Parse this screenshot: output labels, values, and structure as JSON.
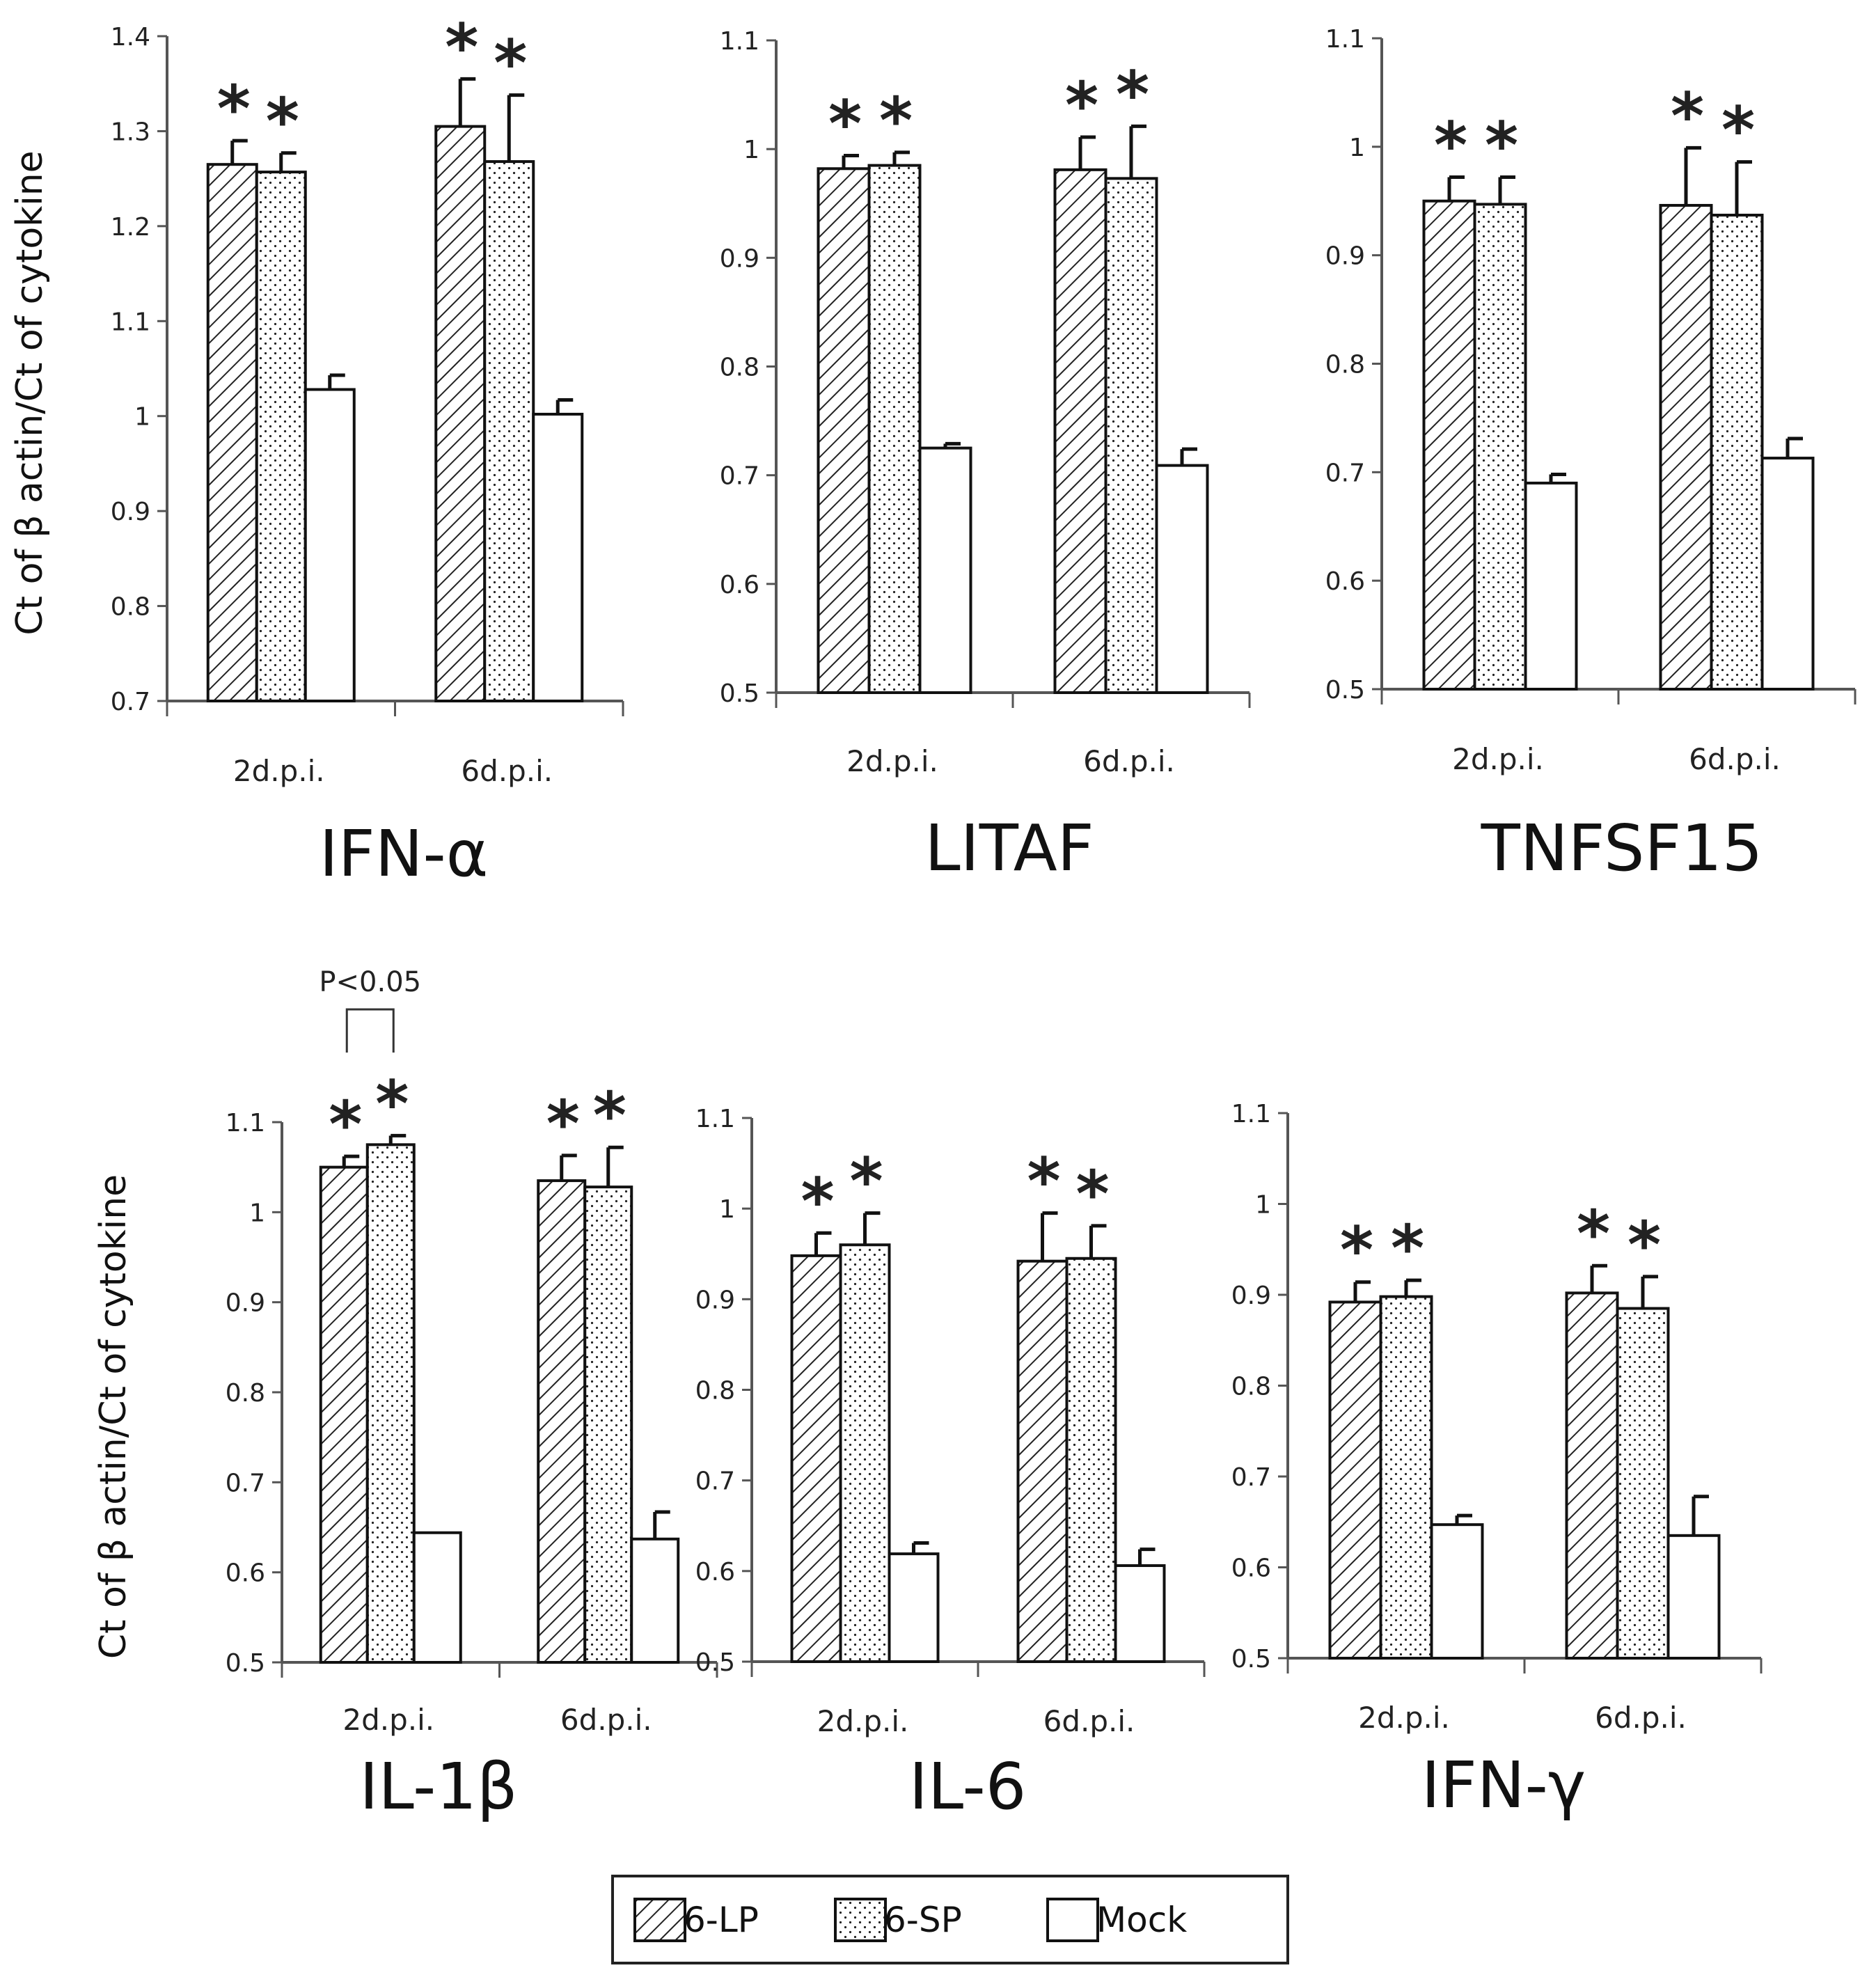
{
  "chart_data": {
    "type": "bar",
    "figure": "Cytokine expression (grouped bar charts with error bars)",
    "ylabel": "Ct of β actin/Ct of cytokine",
    "categories": [
      "2d.p.i.",
      "6d.p.i."
    ],
    "legend": {
      "placement": "bottom-center",
      "entries": [
        {
          "name": "6-LP",
          "pattern": "hatch"
        },
        {
          "name": "6-SP",
          "pattern": "dots"
        },
        {
          "name": "Mock",
          "pattern": "empty"
        }
      ]
    },
    "significance_marker": "*",
    "panels": [
      {
        "title": "IFN-α",
        "show_ylabel": true,
        "ylim": [
          0.7,
          1.4
        ],
        "yticks": [
          "0.7",
          "0.8",
          "0.9",
          "1",
          "1.1",
          "1.2",
          "1.3",
          "1.4"
        ],
        "series": [
          {
            "name": "6-LP",
            "values": [
              1.265,
              1.305
            ],
            "errors": [
              0.025,
              0.05
            ],
            "significant": [
              true,
              true
            ]
          },
          {
            "name": "6-SP",
            "values": [
              1.257,
              1.268
            ],
            "errors": [
              0.02,
              0.07
            ],
            "significant": [
              true,
              true
            ]
          },
          {
            "name": "Mock",
            "values": [
              1.028,
              1.002
            ],
            "errors": [
              0.015,
              0.015
            ],
            "significant": [
              false,
              false
            ]
          }
        ]
      },
      {
        "title": "LITAF",
        "show_ylabel": false,
        "ylim": [
          0.5,
          1.1
        ],
        "yticks": [
          "0.5",
          "0.6",
          "0.7",
          "0.8",
          "0.9",
          "1",
          "1.1"
        ],
        "series": [
          {
            "name": "6-LP",
            "values": [
              0.982,
              0.981
            ],
            "errors": [
              0.012,
              0.03
            ],
            "significant": [
              true,
              true
            ]
          },
          {
            "name": "6-SP",
            "values": [
              0.985,
              0.973
            ],
            "errors": [
              0.012,
              0.048
            ],
            "significant": [
              true,
              true
            ]
          },
          {
            "name": "Mock",
            "values": [
              0.725,
              0.709
            ],
            "errors": [
              0.004,
              0.015
            ],
            "significant": [
              false,
              false
            ]
          }
        ]
      },
      {
        "title": "TNFSF15",
        "show_ylabel": false,
        "ylim": [
          0.5,
          1.1
        ],
        "yticks": [
          "0.5",
          "0.6",
          "0.7",
          "0.8",
          "0.9",
          "1",
          "1.1"
        ],
        "series": [
          {
            "name": "6-LP",
            "values": [
              0.95,
              0.946
            ],
            "errors": [
              0.022,
              0.053
            ],
            "significant": [
              true,
              true
            ]
          },
          {
            "name": "6-SP",
            "values": [
              0.947,
              0.937
            ],
            "errors": [
              0.025,
              0.049
            ],
            "significant": [
              true,
              true
            ]
          },
          {
            "name": "Mock",
            "values": [
              0.69,
              0.713
            ],
            "errors": [
              0.008,
              0.018
            ],
            "significant": [
              false,
              false
            ]
          }
        ]
      },
      {
        "title": "IL-1β",
        "show_ylabel": true,
        "ylim": [
          0.5,
          1.1
        ],
        "yticks": [
          "0.5",
          "0.6",
          "0.7",
          "0.8",
          "0.9",
          "1",
          "1.1"
        ],
        "annotation": {
          "text": "P<0.05",
          "between": [
            "6-LP",
            "6-SP"
          ],
          "category": "2d.p.i."
        },
        "series": [
          {
            "name": "6-LP",
            "values": [
              1.05,
              1.035
            ],
            "errors": [
              0.012,
              0.028
            ],
            "significant": [
              true,
              true
            ]
          },
          {
            "name": "6-SP",
            "values": [
              1.075,
              1.028
            ],
            "errors": [
              0.01,
              0.044
            ],
            "significant": [
              true,
              true
            ]
          },
          {
            "name": "Mock",
            "values": [
              0.644,
              0.637
            ],
            "errors": [
              0.0,
              0.03
            ],
            "significant": [
              false,
              false
            ]
          }
        ]
      },
      {
        "title": "IL-6",
        "show_ylabel": false,
        "ylim": [
          0.5,
          1.1
        ],
        "yticks": [
          "0.5",
          "0.6",
          "0.7",
          "0.8",
          "0.9",
          "1",
          "1.1"
        ],
        "series": [
          {
            "name": "6-LP",
            "values": [
              0.948,
              0.942
            ],
            "errors": [
              0.025,
              0.053
            ],
            "significant": [
              true,
              true
            ]
          },
          {
            "name": "6-SP",
            "values": [
              0.96,
              0.945
            ],
            "errors": [
              0.035,
              0.036
            ],
            "significant": [
              true,
              true
            ]
          },
          {
            "name": "Mock",
            "values": [
              0.619,
              0.606
            ],
            "errors": [
              0.012,
              0.018
            ],
            "significant": [
              false,
              false
            ]
          }
        ]
      },
      {
        "title": "IFN-γ",
        "show_ylabel": false,
        "ylim": [
          0.5,
          1.1
        ],
        "yticks": [
          "0.5",
          "0.6",
          "0.7",
          "0.8",
          "0.9",
          "1",
          "1.1"
        ],
        "series": [
          {
            "name": "6-LP",
            "values": [
              0.892,
              0.902
            ],
            "errors": [
              0.022,
              0.03
            ],
            "significant": [
              true,
              true
            ]
          },
          {
            "name": "6-SP",
            "values": [
              0.898,
              0.885
            ],
            "errors": [
              0.018,
              0.035
            ],
            "significant": [
              true,
              true
            ]
          },
          {
            "name": "Mock",
            "values": [
              0.647,
              0.635
            ],
            "errors": [
              0.01,
              0.043
            ],
            "significant": [
              false,
              false
            ]
          }
        ]
      }
    ]
  }
}
